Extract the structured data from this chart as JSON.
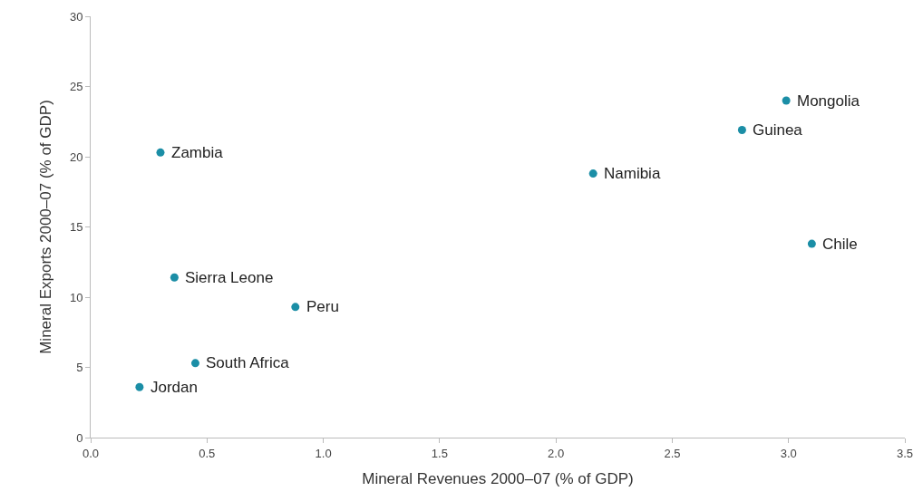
{
  "chart_data": {
    "type": "scatter",
    "xlabel": "Mineral Revenues 2000–07 (% of GDP)",
    "ylabel": "Mineral Exports 2000–07 (% of GDP)",
    "x": [
      0.3,
      0.36,
      0.88,
      0.45,
      0.21,
      2.16,
      2.8,
      2.99,
      3.1
    ],
    "series": [
      {
        "color": "#1b8ea6",
        "values": [
          20.3,
          11.4,
          9.3,
          5.3,
          3.6,
          18.8,
          21.9,
          24.0,
          13.8
        ]
      }
    ],
    "annotations": [
      {
        "text": "Zambia",
        "x": 0.3,
        "y": 20.3
      },
      {
        "text": "Sierra Leone",
        "x": 0.36,
        "y": 11.4
      },
      {
        "text": "Peru",
        "x": 0.88,
        "y": 9.3
      },
      {
        "text": "South Africa",
        "x": 0.45,
        "y": 5.3
      },
      {
        "text": "Jordan",
        "x": 0.21,
        "y": 3.6
      },
      {
        "text": "Namibia",
        "x": 2.16,
        "y": 18.8
      },
      {
        "text": "Guinea",
        "x": 2.8,
        "y": 21.9
      },
      {
        "text": "Mongolia",
        "x": 2.99,
        "y": 24.0
      },
      {
        "text": "Chile",
        "x": 3.1,
        "y": 13.8
      }
    ],
    "xlim": [
      0,
      3.5
    ],
    "xticks": [
      {
        "value": 0,
        "label": "0.0"
      },
      {
        "value": 0.5,
        "label": "0.5"
      },
      {
        "value": 1,
        "label": "1.0"
      },
      {
        "value": 1.5,
        "label": "1.5"
      },
      {
        "value": 2,
        "label": "2.0"
      },
      {
        "value": 2.5,
        "label": "2.5"
      },
      {
        "value": 3,
        "label": "3.0"
      },
      {
        "value": 3.5,
        "label": "3.5"
      }
    ],
    "ylim": [
      0,
      30
    ],
    "yticks": [
      0,
      5,
      10,
      15,
      20,
      25,
      30
    ],
    "marker": "circle"
  }
}
